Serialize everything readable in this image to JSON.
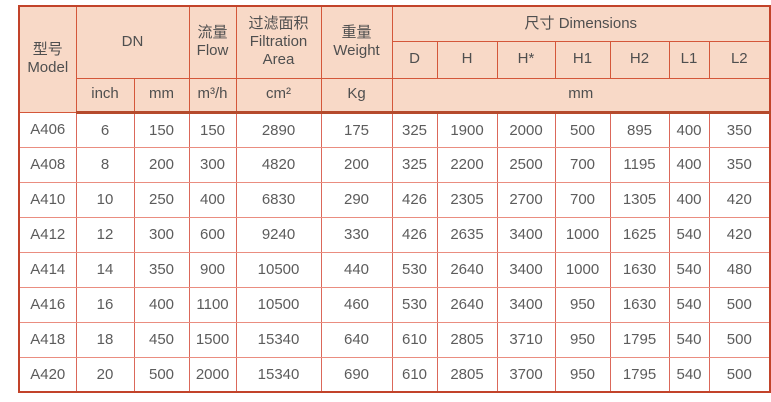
{
  "colors": {
    "header_bg": "#f8d9c7",
    "border_strong": "#c2432a",
    "header_border": "#d4573a",
    "border_v": "#db685a",
    "border_h": "#ea8d80",
    "text_data": "#5c5c5c",
    "text_header": "#4f4f4f"
  },
  "table": {
    "header": {
      "model": "型号\nModel",
      "dn": "DN",
      "flow": "流量\nFlow",
      "filtration": "过滤面积\nFiltration\nArea",
      "weight": "重量\nWeight",
      "dimensions": "尺寸 Dimensions",
      "dims": [
        "D",
        "H",
        "H*",
        "H1",
        "H2",
        "L1",
        "L2"
      ]
    },
    "units": {
      "inch": "inch",
      "dn_mm": "mm",
      "flow": "m³/h",
      "area": "cm²",
      "weight": "Kg",
      "dims_mm": "mm"
    },
    "rows": [
      [
        "A406",
        "6",
        "150",
        "150",
        "2890",
        "175",
        "325",
        "1900",
        "2000",
        "500",
        "895",
        "400",
        "350"
      ],
      [
        "A408",
        "8",
        "200",
        "300",
        "4820",
        "200",
        "325",
        "2200",
        "2500",
        "700",
        "1195",
        "400",
        "350"
      ],
      [
        "A410",
        "10",
        "250",
        "400",
        "6830",
        "290",
        "426",
        "2305",
        "2700",
        "700",
        "1305",
        "400",
        "420"
      ],
      [
        "A412",
        "12",
        "300",
        "600",
        "9240",
        "330",
        "426",
        "2635",
        "3400",
        "1000",
        "1625",
        "540",
        "420"
      ],
      [
        "A414",
        "14",
        "350",
        "900",
        "10500",
        "440",
        "530",
        "2640",
        "3400",
        "1000",
        "1630",
        "540",
        "480"
      ],
      [
        "A416",
        "16",
        "400",
        "1100",
        "10500",
        "460",
        "530",
        "2640",
        "3400",
        "950",
        "1630",
        "540",
        "500"
      ],
      [
        "A418",
        "18",
        "450",
        "1500",
        "15340",
        "640",
        "610",
        "2805",
        "3710",
        "950",
        "1795",
        "540",
        "500"
      ],
      [
        "A420",
        "20",
        "500",
        "2000",
        "15340",
        "690",
        "610",
        "2805",
        "3700",
        "950",
        "1795",
        "540",
        "500"
      ]
    ]
  }
}
